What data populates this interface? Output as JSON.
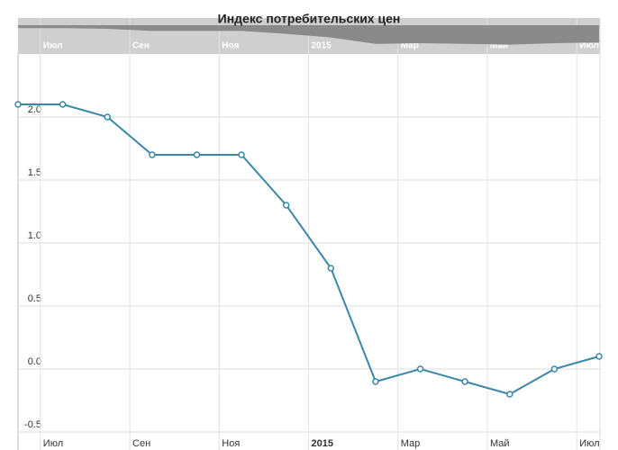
{
  "chart_data": {
    "type": "line",
    "title": "Индекс потребительских цен",
    "x": [
      "2014-06",
      "2014-07",
      "2014-08",
      "2014-09",
      "2014-10",
      "2014-11",
      "2014-12",
      "2015-01",
      "2015-02",
      "2015-03",
      "2015-04",
      "2015-05",
      "2015-06",
      "2015-07"
    ],
    "values": [
      2.1,
      2.1,
      2.0,
      1.7,
      1.7,
      1.7,
      1.3,
      0.8,
      -0.1,
      0.0,
      -0.1,
      -0.2,
      0.0,
      0.1
    ],
    "color": "#3a87a9",
    "xlim": [
      "2014-06",
      "2015-07"
    ],
    "xticks": [
      {
        "value": "2014-07",
        "label": "Июл"
      },
      {
        "value": "2014-09",
        "label": "Сен"
      },
      {
        "value": "2014-11",
        "label": "Ноя"
      },
      {
        "value": "2015-01",
        "label": "2015"
      },
      {
        "value": "2015-03",
        "label": "Мар"
      },
      {
        "value": "2015-05",
        "label": "Май"
      },
      {
        "value": "2015-07",
        "label": "Июл"
      }
    ],
    "ylim": [
      -0.5,
      2.5
    ],
    "yticks": [
      -0.5,
      {
        "value": 0,
        "label": "0.0"
      },
      0.5,
      {
        "value": 1,
        "label": "1.0"
      },
      1.5,
      {
        "value": 2,
        "label": "2.0"
      }
    ],
    "grid": true
  }
}
